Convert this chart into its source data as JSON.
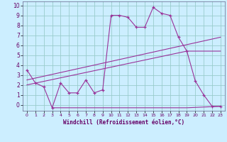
{
  "background_color": "#cceeff",
  "grid_color": "#99cccc",
  "line_color": "#993399",
  "xlim": [
    -0.5,
    23.5
  ],
  "ylim": [
    -0.6,
    10.4
  ],
  "yticks": [
    0,
    1,
    2,
    3,
    4,
    5,
    6,
    7,
    8,
    9,
    10
  ],
  "xticks": [
    0,
    1,
    2,
    3,
    4,
    5,
    6,
    7,
    8,
    9,
    10,
    11,
    12,
    13,
    14,
    15,
    16,
    17,
    18,
    19,
    20,
    21,
    22,
    23
  ],
  "series1_x": [
    0,
    1,
    2,
    3,
    4,
    5,
    6,
    7,
    8,
    9,
    10,
    11,
    12,
    13,
    14,
    15,
    16,
    17,
    18,
    19,
    20,
    21,
    22,
    23
  ],
  "series1_y": [
    3.5,
    2.2,
    1.8,
    -0.3,
    2.2,
    1.2,
    1.2,
    2.5,
    1.2,
    1.5,
    9.0,
    9.0,
    8.8,
    7.8,
    7.8,
    9.8,
    9.2,
    9.0,
    6.8,
    5.4,
    2.4,
    1.0,
    -0.15,
    -0.15
  ],
  "series2_x": [
    0,
    23
  ],
  "series2_y": [
    2.5,
    6.8
  ],
  "series3_x": [
    0,
    19,
    23
  ],
  "series3_y": [
    2.0,
    5.4,
    5.4
  ],
  "series4_x": [
    3,
    9,
    19,
    23
  ],
  "series4_y": [
    -0.3,
    -0.3,
    -0.3,
    -0.15
  ],
  "xlabel": "Windchill (Refroidissement éolien,°C)",
  "xlabel_color": "#660066"
}
